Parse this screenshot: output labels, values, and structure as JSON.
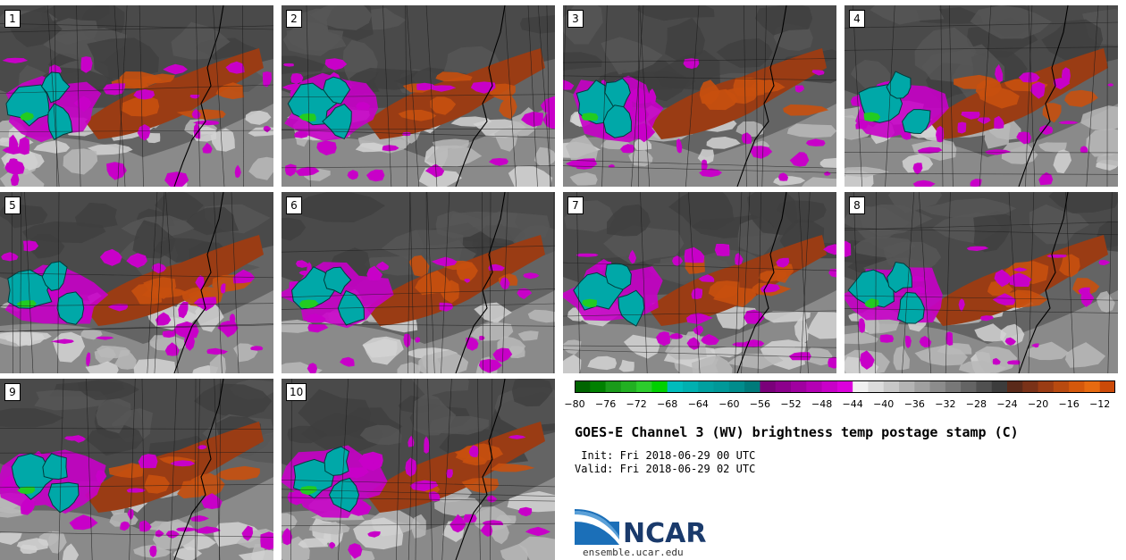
{
  "panels": [
    {
      "label": "1"
    },
    {
      "label": "2"
    },
    {
      "label": "3"
    },
    {
      "label": "4"
    },
    {
      "label": "5"
    },
    {
      "label": "6"
    },
    {
      "label": "7"
    },
    {
      "label": "8"
    },
    {
      "label": "9"
    },
    {
      "label": "10"
    }
  ],
  "colorbar": {
    "ticks": [
      "−80",
      "−76",
      "−72",
      "−68",
      "−64",
      "−60",
      "−56",
      "−52",
      "−48",
      "−44",
      "−40",
      "−36",
      "−32",
      "−28",
      "−24",
      "−20",
      "−16",
      "−12"
    ],
    "min": -80,
    "max": -10,
    "step": 2,
    "colors": [
      "#006400",
      "#008000",
      "#1a9a1a",
      "#22b022",
      "#2ccc2c",
      "#00d000",
      "#00bcbc",
      "#00b0b0",
      "#00a0a0",
      "#009898",
      "#008c8c",
      "#007a7a",
      "#7a007a",
      "#8c008c",
      "#a000a0",
      "#b400b4",
      "#c800c8",
      "#dc00dc",
      "#f0f0f0",
      "#dcdcdc",
      "#c8c8c8",
      "#b4b4b4",
      "#a0a0a0",
      "#8c8c8c",
      "#787878",
      "#646464",
      "#505050",
      "#3c3c3c",
      "#5a2a1a",
      "#7a3218",
      "#9a3c14",
      "#b84a10",
      "#d4580c",
      "#e66a10",
      "#cc4a08"
    ]
  },
  "title": "GOES-E Channel 3 (WV) brightness temp postage stamp (C)",
  "init": " Init: Fri 2018-06-29 00 UTC",
  "valid": "Valid: Fri 2018-06-29 02 UTC",
  "logo": {
    "word": "NCAR",
    "url": "ensemble.ucar.edu"
  },
  "colors": {
    "land_dark": "#4a4a4a",
    "land_mid": "#6a6a6a",
    "cloud_light": "#b8b8b8",
    "orange": "#9a3c14",
    "orange_bright": "#c8500e",
    "magenta": "#c800c8",
    "cyan": "#00a8a8",
    "green": "#22cc22"
  }
}
